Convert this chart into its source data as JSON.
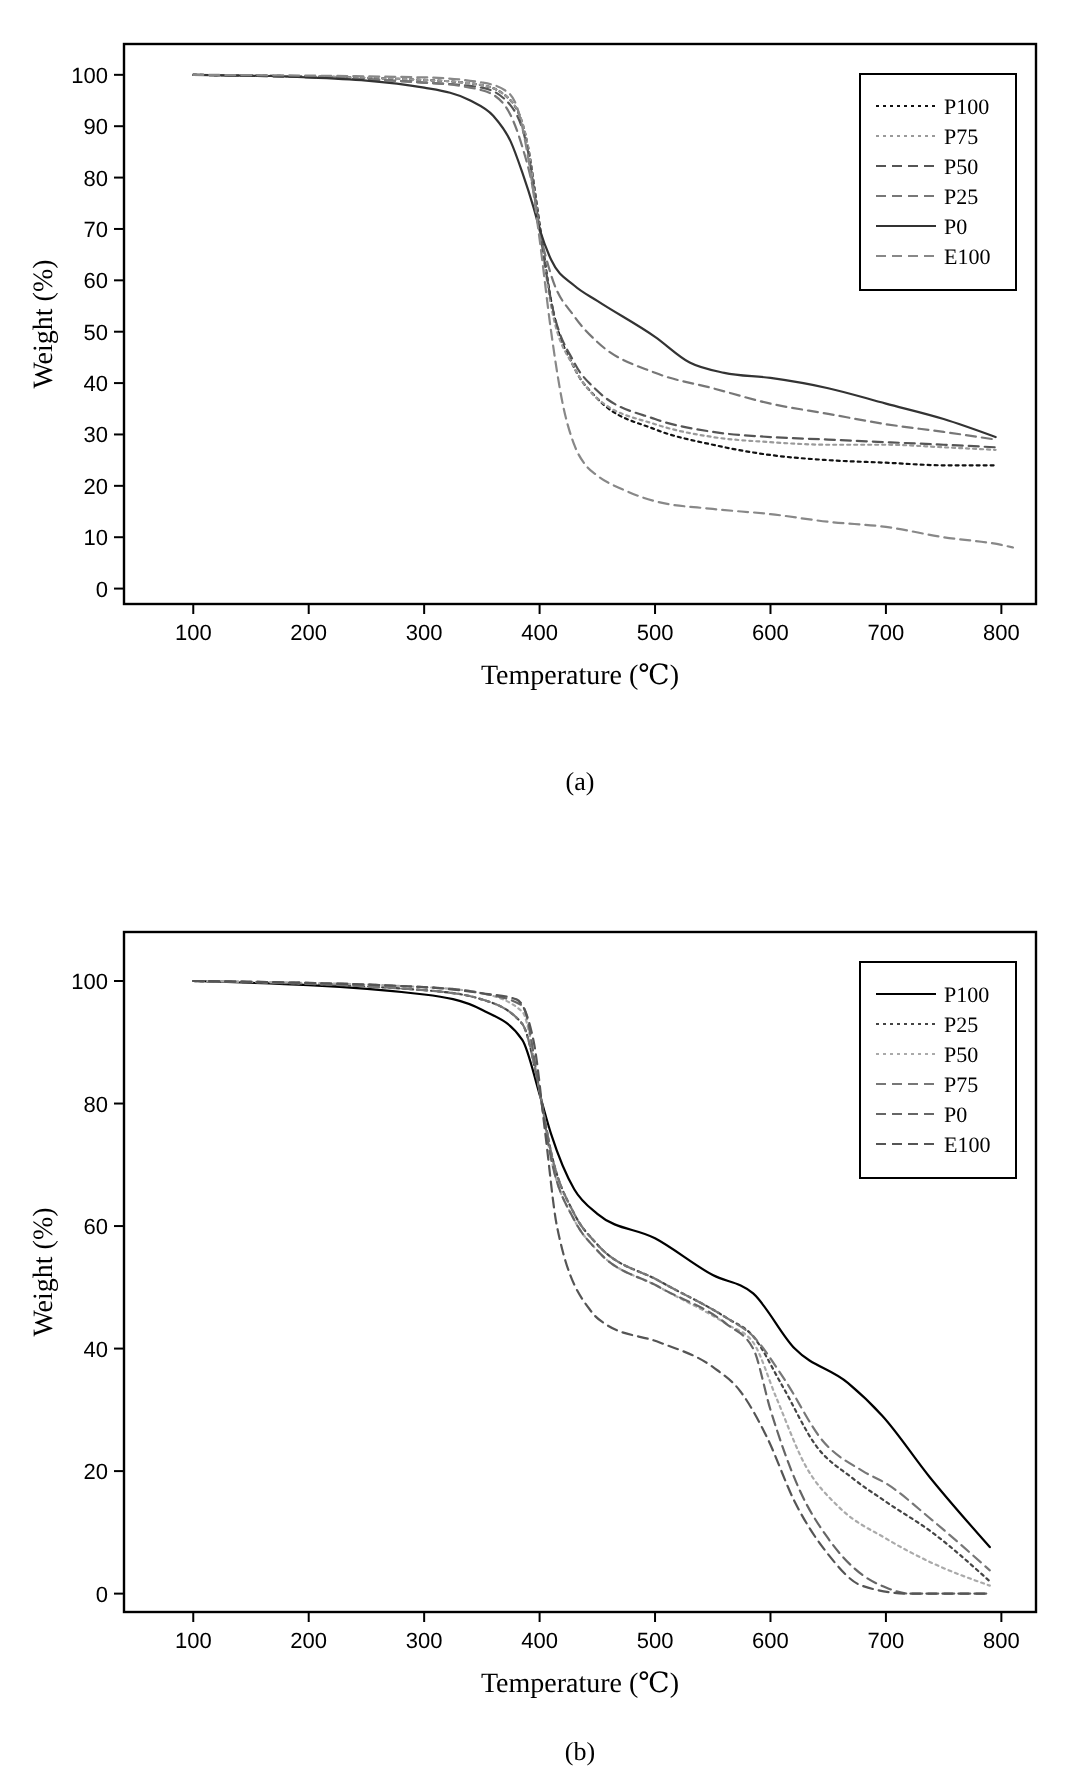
{
  "chart_data": [
    {
      "type": "line",
      "title": "(a)",
      "xlabel": "Temperature (℃)",
      "ylabel": "Weight (%)",
      "xlim": [
        40,
        830
      ],
      "ylim": [
        -3,
        106
      ],
      "xticks": [
        100,
        200,
        300,
        400,
        500,
        600,
        700,
        800
      ],
      "yticks": [
        0,
        10,
        20,
        30,
        40,
        50,
        60,
        70,
        80,
        90,
        100
      ],
      "legend": "top right",
      "grid": false,
      "series": [
        {
          "name": "P100",
          "color": "#111111",
          "line_style": "dotted",
          "x": [
            100,
            300,
            350,
            375,
            390,
            400,
            410,
            430,
            450,
            500,
            550,
            600,
            650,
            700,
            750,
            795
          ],
          "values": [
            100,
            99,
            98,
            95,
            86,
            71,
            56,
            43,
            37,
            31,
            28,
            26,
            25,
            24.5,
            24,
            24
          ]
        },
        {
          "name": "P75",
          "color": "#9a9a9a",
          "line_style": "dotted",
          "x": [
            100,
            300,
            350,
            375,
            390,
            400,
            410,
            430,
            450,
            500,
            550,
            600,
            650,
            700,
            750,
            795
          ],
          "values": [
            100,
            99,
            98,
            95,
            86,
            70,
            55,
            43,
            37,
            32,
            29.5,
            28.5,
            28,
            28,
            27.5,
            27
          ]
        },
        {
          "name": "P50",
          "color": "#555555",
          "line_style": "dashed",
          "x": [
            100,
            300,
            350,
            375,
            390,
            400,
            410,
            430,
            450,
            500,
            550,
            600,
            650,
            700,
            750,
            795
          ],
          "values": [
            100,
            98.5,
            97.5,
            94,
            85,
            70,
            56,
            44,
            38.5,
            33,
            30.5,
            29.5,
            29,
            28.5,
            28,
            27.5
          ]
        },
        {
          "name": "P25",
          "color": "#777777",
          "line_style": "dashed",
          "x": [
            100,
            300,
            350,
            370,
            385,
            395,
            400,
            410,
            430,
            450,
            500,
            550,
            600,
            650,
            700,
            750,
            795
          ],
          "values": [
            100,
            98.5,
            97,
            94,
            86,
            77,
            70,
            61,
            53,
            48,
            42,
            39,
            36,
            34,
            32,
            30.5,
            29
          ]
        },
        {
          "name": "P0",
          "color": "#333333",
          "line_style": "solid",
          "x": [
            100,
            200,
            300,
            340,
            360,
            375,
            385,
            395,
            400,
            410,
            430,
            450,
            500,
            530,
            560,
            600,
            650,
            700,
            750,
            795
          ],
          "values": [
            100,
            99.5,
            97.5,
            95,
            92,
            87,
            81,
            74,
            70,
            64,
            59,
            56,
            49,
            44,
            42,
            41,
            39,
            36,
            33,
            29.5
          ]
        },
        {
          "name": "E100",
          "color": "#888888",
          "line_style": "dashed",
          "x": [
            100,
            300,
            350,
            370,
            380,
            390,
            400,
            410,
            420,
            430,
            440,
            450,
            475,
            500,
            550,
            600,
            650,
            700,
            750,
            800,
            810
          ],
          "values": [
            100,
            99.5,
            98.5,
            97,
            94,
            84,
            68,
            50,
            36,
            28,
            24,
            22,
            19,
            17,
            15.5,
            14.5,
            13,
            12,
            10,
            8.5,
            8
          ]
        }
      ]
    },
    {
      "type": "line",
      "title": "(b)",
      "xlabel": "Temperature (℃)",
      "ylabel": "Weight (%)",
      "xlim": [
        40,
        830
      ],
      "ylim": [
        -3,
        108
      ],
      "xticks": [
        100,
        200,
        300,
        400,
        500,
        600,
        700,
        800
      ],
      "yticks": [
        0,
        20,
        40,
        60,
        80,
        100
      ],
      "legend": "top right",
      "grid": false,
      "series": [
        {
          "name": "P100",
          "color": "#000000",
          "line_style": "solid",
          "x": [
            100,
            300,
            350,
            385,
            400,
            410,
            430,
            450,
            500,
            550,
            585,
            621,
            667,
            697,
            738,
            790
          ],
          "values": [
            100,
            97.8,
            95.3,
            90.4,
            81.5,
            75,
            66,
            62,
            58,
            52,
            49,
            40,
            34.4,
            29,
            19,
            7.6
          ]
        },
        {
          "name": "P25",
          "color": "#444444",
          "line_style": "dotted",
          "x": [
            100,
            300,
            350,
            385,
            400,
            410,
            430,
            450,
            504,
            562,
            585,
            610,
            640,
            670,
            700,
            740,
            790
          ],
          "values": [
            100,
            98.5,
            97,
            93,
            82,
            72,
            62,
            57,
            51,
            45,
            42,
            34,
            24,
            19,
            15,
            10,
            2
          ]
        },
        {
          "name": "P50",
          "color": "#aaaaaa",
          "line_style": "dotted",
          "x": [
            100,
            300,
            350,
            385,
            400,
            410,
            430,
            450,
            504,
            562,
            585,
            605,
            630,
            660,
            700,
            740,
            790
          ],
          "values": [
            100,
            99,
            98,
            95,
            82,
            71,
            61,
            56,
            50,
            44,
            41,
            32,
            21,
            14,
            9,
            5,
            1.3
          ]
        },
        {
          "name": "P75",
          "color": "#777777",
          "line_style": "dashed",
          "x": [
            100,
            300,
            350,
            385,
            400,
            410,
            430,
            450,
            504,
            562,
            585,
            612,
            645,
            680,
            700,
            740,
            790
          ],
          "values": [
            100,
            98.5,
            97,
            93,
            82,
            72,
            62,
            57,
            51,
            45,
            42,
            35,
            25,
            20,
            18,
            12,
            3.8
          ]
        },
        {
          "name": "P0",
          "color": "#666666",
          "line_style": "dashed",
          "x": [
            100,
            300,
            350,
            385,
            400,
            410,
            430,
            450,
            504,
            562,
            585,
            600,
            625,
            650,
            680,
            700,
            720,
            790
          ],
          "values": [
            100,
            99,
            98,
            96,
            82,
            71,
            61,
            56,
            50,
            44,
            40,
            30,
            17,
            9,
            3,
            1,
            0,
            0
          ]
        },
        {
          "name": "E100",
          "color": "#555555",
          "line_style": "dashed",
          "x": [
            100,
            300,
            350,
            380,
            395,
            405,
            415,
            445,
            457,
            504,
            550,
            574,
            597,
            621,
            650,
            679,
            720,
            790
          ],
          "values": [
            100,
            99,
            98,
            97,
            90,
            75,
            60,
            46,
            44,
            41,
            37,
            33,
            25.5,
            15,
            6.4,
            1.3,
            0,
            0
          ]
        }
      ]
    }
  ]
}
